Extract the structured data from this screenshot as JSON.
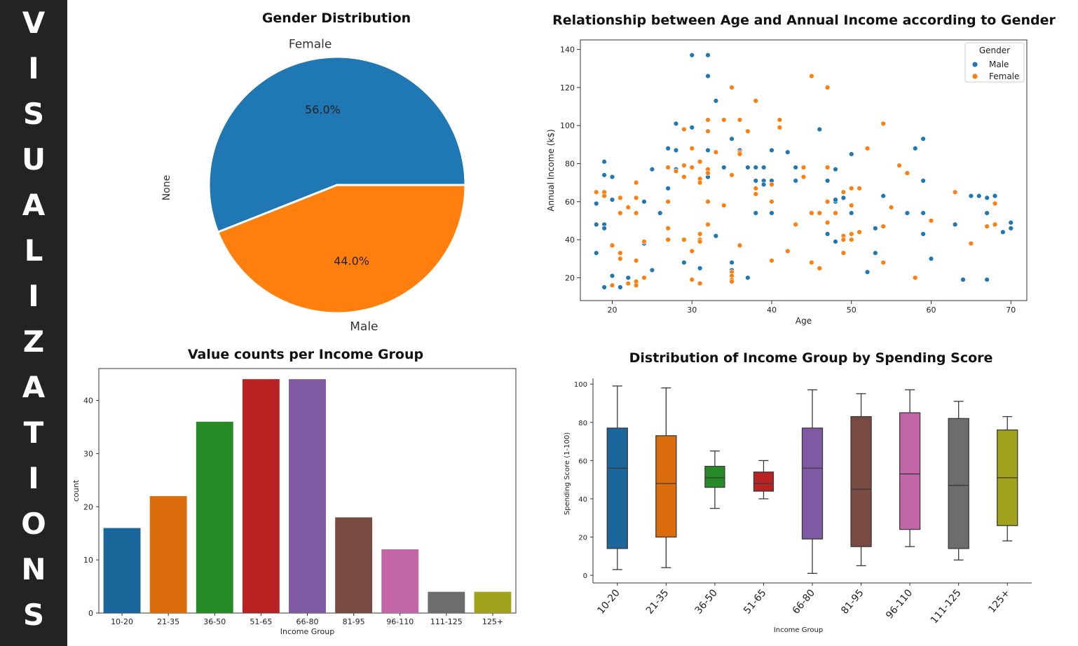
{
  "sidebar": {
    "title": "VISUALIZATIONS"
  },
  "colors": {
    "blue": "#1f77b4",
    "orange": "#ff7f0e",
    "green": "#2ca02c",
    "red": "#d62728",
    "purple": "#9467bd",
    "brown": "#8c564b",
    "pink": "#e377c2",
    "gray": "#7f7f7f",
    "olive": "#bcbd22",
    "sidebar_bg": "#232323"
  },
  "chart_data": [
    {
      "type": "pie",
      "title": "Gender Distribution",
      "ylabel": "None",
      "labels": [
        "Female",
        "Male"
      ],
      "values": [
        56.0,
        44.0
      ],
      "pct_labels": [
        "56.0%",
        "44.0%"
      ]
    },
    {
      "type": "scatter",
      "title": "Relationship between Age and Annual Income according to Gender",
      "xlabel": "Age",
      "ylabel": "Annual Income (k$)",
      "xlim": [
        16,
        72
      ],
      "ylim": [
        8,
        145
      ],
      "xticks": [
        20,
        30,
        40,
        50,
        60,
        70
      ],
      "yticks": [
        20,
        40,
        60,
        80,
        100,
        120,
        140
      ],
      "legend_title": "Gender",
      "legend_position": "top-right",
      "series": [
        {
          "name": "Male",
          "points": [
            [
              18,
              59
            ],
            [
              18,
              48
            ],
            [
              18,
              33
            ],
            [
              19,
              81
            ],
            [
              19,
              74
            ],
            [
              19,
              48
            ],
            [
              19,
              46
            ],
            [
              19,
              64
            ],
            [
              20,
              73
            ],
            [
              20,
              61
            ],
            [
              20,
              21
            ],
            [
              19,
              15
            ],
            [
              21,
              15
            ],
            [
              22,
              20
            ],
            [
              24,
              60
            ],
            [
              24,
              38
            ],
            [
              25,
              77
            ],
            [
              25,
              24
            ],
            [
              26,
              54
            ],
            [
              27,
              88
            ],
            [
              27,
              67
            ],
            [
              28,
              77
            ],
            [
              28,
              87
            ],
            [
              28,
              101
            ],
            [
              29,
              28
            ],
            [
              30,
              99
            ],
            [
              30,
              137
            ],
            [
              31,
              25
            ],
            [
              32,
              137
            ],
            [
              32,
              126
            ],
            [
              32,
              87
            ],
            [
              32,
              73
            ],
            [
              33,
              113
            ],
            [
              33,
              42
            ],
            [
              34,
              78
            ],
            [
              35,
              93
            ],
            [
              35,
              24
            ],
            [
              35,
              28
            ],
            [
              36,
              87
            ],
            [
              37,
              78
            ],
            [
              37,
              20
            ],
            [
              38,
              78
            ],
            [
              38,
              71
            ],
            [
              38,
              54
            ],
            [
              39,
              71
            ],
            [
              39,
              69
            ],
            [
              39,
              78
            ],
            [
              40,
              87
            ],
            [
              40,
              71
            ],
            [
              40,
              54
            ],
            [
              42,
              86
            ],
            [
              43,
              78
            ],
            [
              43,
              71
            ],
            [
              46,
              98
            ],
            [
              47,
              78
            ],
            [
              47,
              71
            ],
            [
              47,
              43
            ],
            [
              48,
              77
            ],
            [
              48,
              60
            ],
            [
              48,
              61
            ],
            [
              48,
              54
            ],
            [
              48,
              39
            ],
            [
              49,
              62
            ],
            [
              50,
              85
            ],
            [
              50,
              54
            ],
            [
              52,
              23
            ],
            [
              53,
              46
            ],
            [
              53,
              33
            ],
            [
              54,
              63
            ],
            [
              57,
              54
            ],
            [
              58,
              88
            ],
            [
              59,
              93
            ],
            [
              59,
              71
            ],
            [
              59,
              54
            ],
            [
              59,
              43
            ],
            [
              60,
              30
            ],
            [
              63,
              48
            ],
            [
              64,
              19
            ],
            [
              65,
              63
            ],
            [
              66,
              63
            ],
            [
              67,
              62
            ],
            [
              67,
              54
            ],
            [
              67,
              19
            ],
            [
              68,
              63
            ],
            [
              69,
              44
            ],
            [
              70,
              49
            ],
            [
              70,
              46
            ]
          ]
        },
        {
          "name": "Female",
          "points": [
            [
              18,
              65
            ],
            [
              19,
              65
            ],
            [
              19,
              63
            ],
            [
              20,
              37
            ],
            [
              20,
              16
            ],
            [
              21,
              62
            ],
            [
              21,
              54
            ],
            [
              21,
              33
            ],
            [
              21,
              30
            ],
            [
              22,
              57
            ],
            [
              22,
              17
            ],
            [
              23,
              70
            ],
            [
              23,
              62
            ],
            [
              23,
              54
            ],
            [
              23,
              29
            ],
            [
              23,
              18
            ],
            [
              23,
              16
            ],
            [
              24,
              39
            ],
            [
              24,
              20
            ],
            [
              27,
              78
            ],
            [
              27,
              60
            ],
            [
              27,
              46
            ],
            [
              27,
              40
            ],
            [
              28,
              76
            ],
            [
              29,
              98
            ],
            [
              29,
              79
            ],
            [
              29,
              73
            ],
            [
              29,
              40
            ],
            [
              30,
              88
            ],
            [
              30,
              78
            ],
            [
              30,
              34
            ],
            [
              30,
              19
            ],
            [
              31,
              81
            ],
            [
              31,
              72
            ],
            [
              31,
              70
            ],
            [
              31,
              43
            ],
            [
              31,
              40
            ],
            [
              31,
              39
            ],
            [
              31,
              17
            ],
            [
              32,
              103
            ],
            [
              32,
              97
            ],
            [
              32,
              77
            ],
            [
              32,
              75
            ],
            [
              32,
              60
            ],
            [
              32,
              48
            ],
            [
              33,
              86
            ],
            [
              34,
              103
            ],
            [
              34,
              58
            ],
            [
              35,
              120
            ],
            [
              35,
              74
            ],
            [
              35,
              23
            ],
            [
              35,
              21
            ],
            [
              35,
              19
            ],
            [
              35,
              18
            ],
            [
              36,
              103
            ],
            [
              36,
              86
            ],
            [
              36,
              85
            ],
            [
              36,
              37
            ],
            [
              37,
              97
            ],
            [
              38,
              113
            ],
            [
              38,
              67
            ],
            [
              38,
              64
            ],
            [
              40,
              69
            ],
            [
              40,
              60
            ],
            [
              40,
              29
            ],
            [
              41,
              103
            ],
            [
              41,
              99
            ],
            [
              42,
              34
            ],
            [
              43,
              48
            ],
            [
              44,
              78
            ],
            [
              44,
              73
            ],
            [
              45,
              126
            ],
            [
              45,
              54
            ],
            [
              45,
              28
            ],
            [
              46,
              54
            ],
            [
              46,
              25
            ],
            [
              47,
              120
            ],
            [
              47,
              78
            ],
            [
              47,
              60
            ],
            [
              47,
              49
            ],
            [
              48,
              54
            ],
            [
              49,
              65
            ],
            [
              49,
              42
            ],
            [
              49,
              40
            ],
            [
              49,
              33
            ],
            [
              50,
              67
            ],
            [
              50,
              58
            ],
            [
              50,
              43
            ],
            [
              50,
              40
            ],
            [
              51,
              67
            ],
            [
              51,
              44
            ],
            [
              52,
              88
            ],
            [
              54,
              101
            ],
            [
              54,
              47
            ],
            [
              54,
              28
            ],
            [
              55,
              57
            ],
            [
              56,
              79
            ],
            [
              57,
              75
            ],
            [
              58,
              20
            ],
            [
              60,
              50
            ],
            [
              63,
              65
            ],
            [
              65,
              38
            ],
            [
              67,
              47
            ],
            [
              68,
              59
            ],
            [
              68,
              48
            ]
          ]
        }
      ]
    },
    {
      "type": "bar",
      "title": "Value counts per Income Group",
      "xlabel": "Income Group",
      "ylabel": "count",
      "ylim": [
        0,
        46
      ],
      "yticks": [
        0,
        10,
        20,
        30,
        40
      ],
      "categories": [
        "10-20",
        "21-35",
        "36-50",
        "51-65",
        "66-80",
        "81-95",
        "96-110",
        "111-125",
        "125+"
      ],
      "values": [
        16,
        22,
        36,
        44,
        44,
        18,
        12,
        4,
        4
      ]
    },
    {
      "type": "box",
      "title": "Distribution of Income Group by Spending Score",
      "xlabel": "Income Group",
      "ylabel": "Spending Score (1-100)",
      "ylim": [
        -4,
        103
      ],
      "yticks": [
        0,
        20,
        40,
        60,
        80,
        100
      ],
      "categories": [
        "10-20",
        "21-35",
        "36-50",
        "51-65",
        "66-80",
        "81-95",
        "96-110",
        "111-125",
        "125+"
      ],
      "boxes": [
        {
          "min": 3,
          "q1": 14,
          "median": 56,
          "q3": 77,
          "max": 99
        },
        {
          "min": 4,
          "q1": 20,
          "median": 48,
          "q3": 73,
          "max": 98
        },
        {
          "min": 35,
          "q1": 46,
          "median": 51,
          "q3": 57,
          "max": 65
        },
        {
          "min": 40,
          "q1": 44,
          "median": 48,
          "q3": 54,
          "max": 60
        },
        {
          "min": 1,
          "q1": 19,
          "median": 56,
          "q3": 77,
          "max": 97
        },
        {
          "min": 5,
          "q1": 15,
          "median": 45,
          "q3": 83,
          "max": 95
        },
        {
          "min": 15,
          "q1": 24,
          "median": 53,
          "q3": 85,
          "max": 97
        },
        {
          "min": 8,
          "q1": 14,
          "median": 47,
          "q3": 82,
          "max": 91
        },
        {
          "min": 18,
          "q1": 26,
          "median": 51,
          "q3": 76,
          "max": 83
        }
      ]
    }
  ]
}
